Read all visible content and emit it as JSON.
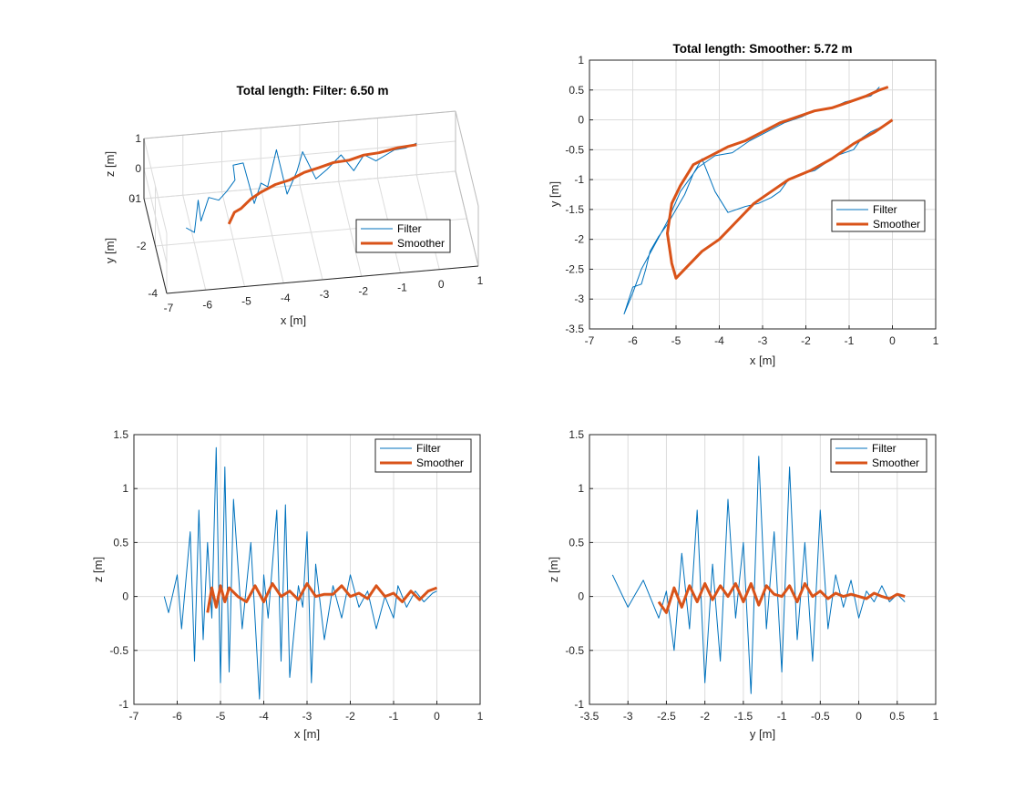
{
  "colors": {
    "filter": "#0072BD",
    "smoother": "#D95319",
    "grid": "#dcdcdc",
    "axes": "#262626"
  },
  "chart_data": [
    {
      "id": "3d",
      "type": "line",
      "title": "Total length: Filter: 6.50 m",
      "xlabel": "x [m]",
      "ylabel": "y [m]",
      "zlabel": "z [m]",
      "xlim": [
        -7,
        1
      ],
      "ylim": [
        -4,
        0
      ],
      "zlim": [
        -1,
        1
      ],
      "xticks": [
        "-7",
        "-6",
        "-5",
        "-4",
        "-3",
        "-2",
        "-1",
        "0",
        "1"
      ],
      "yticks": [
        "-4",
        "-2",
        "0"
      ],
      "zticks": [
        "-1",
        "0",
        "1"
      ],
      "grid": true,
      "legend": {
        "position": "right",
        "entries": [
          "Filter",
          "Smoother"
        ]
      },
      "series": [
        {
          "name": "Filter",
          "points": [
            [
              -6.3,
              -2.6,
              0
            ],
            [
              -6.1,
              -2.7,
              -0.1
            ],
            [
              -5.9,
              -2.0,
              0.4
            ],
            [
              -5.9,
              -2.5,
              0.1
            ],
            [
              -5.6,
              -1.8,
              0.3
            ],
            [
              -5.4,
              -2.2,
              0.5
            ],
            [
              -5.1,
              -1.5,
              0.2
            ],
            [
              -5.0,
              -2.3,
              1.2
            ],
            [
              -4.9,
              -1.3,
              0.9
            ],
            [
              -4.6,
              -1.0,
              0.7
            ],
            [
              -4.4,
              -1.6,
              -0.2
            ],
            [
              -4.2,
              -1.4,
              0.3
            ],
            [
              -4.0,
              -1.2,
              0.0
            ],
            [
              -3.7,
              -0.7,
              0.8
            ],
            [
              -3.5,
              -1.2,
              -0.3
            ],
            [
              -3.2,
              -0.9,
              0.2
            ],
            [
              -3.0,
              -0.5,
              0.5
            ],
            [
              -2.7,
              -0.8,
              -0.2
            ],
            [
              -2.4,
              -0.7,
              0.0
            ],
            [
              -2.0,
              -0.4,
              0.2
            ],
            [
              -1.7,
              -0.6,
              -0.2
            ],
            [
              -1.4,
              -0.35,
              0.1
            ],
            [
              -1.1,
              -0.4,
              -0.1
            ],
            [
              -0.6,
              -0.2,
              0.05
            ],
            [
              -0.3,
              -0.1,
              0.0
            ],
            [
              0,
              0,
              0.05
            ]
          ]
        },
        {
          "name": "Smoother",
          "points": [
            [
              -5.2,
              -2.6,
              0
            ],
            [
              -5.0,
              -2.2,
              0.05
            ],
            [
              -4.8,
              -2.0,
              0
            ],
            [
              -4.5,
              -1.7,
              0.05
            ],
            [
              -4.2,
              -1.4,
              0
            ],
            [
              -3.8,
              -1.2,
              0.05
            ],
            [
              -3.4,
              -1.0,
              0
            ],
            [
              -3.0,
              -0.8,
              0.05
            ],
            [
              -2.6,
              -0.6,
              0
            ],
            [
              -2.2,
              -0.5,
              0.05
            ],
            [
              -1.8,
              -0.4,
              0
            ],
            [
              -1.4,
              -0.3,
              0.05
            ],
            [
              -1.0,
              -0.2,
              0
            ],
            [
              -0.5,
              -0.1,
              0.03
            ],
            [
              0,
              0,
              0
            ]
          ]
        }
      ]
    },
    {
      "id": "xy",
      "type": "line",
      "title": "Total length: Smoother: 5.72 m",
      "xlabel": "x [m]",
      "ylabel": "y [m]",
      "xlim": [
        -7,
        1
      ],
      "ylim": [
        -3.5,
        1
      ],
      "xticks": [
        "-7",
        "-6",
        "-5",
        "-4",
        "-3",
        "-2",
        "-1",
        "0",
        "1"
      ],
      "yticks": [
        "-3.5",
        "-3",
        "-2.5",
        "-2",
        "-1.5",
        "-1",
        "-0.5",
        "0",
        "0.5",
        "1"
      ],
      "grid": true,
      "legend": {
        "position": "right",
        "entries": [
          "Filter",
          "Smoother"
        ]
      },
      "series": [
        {
          "name": "Filter",
          "x": [
            0,
            -0.2,
            -0.5,
            -0.7,
            -0.9,
            -1.3,
            -1.5,
            -1.8,
            -2.1,
            -2.4,
            -2.6,
            -2.8,
            -3.1,
            -3.4,
            -3.8,
            -4.1,
            -4.4,
            -4.6,
            -4.8,
            -5.0,
            -5.2,
            -5.4,
            -5.6,
            -5.7,
            -5.8,
            -6.0,
            -6.2,
            -6.0,
            -5.8,
            -5.5,
            -5.2,
            -4.9,
            -4.5,
            -4.1,
            -3.7,
            -3.3,
            -2.9,
            -2.5,
            -2.1,
            -1.8,
            -1.4,
            -1.1,
            -0.8,
            -0.5,
            -0.3
          ],
          "y": [
            0,
            -0.1,
            -0.2,
            -0.3,
            -0.5,
            -0.6,
            -0.7,
            -0.85,
            -0.9,
            -1.0,
            -1.2,
            -1.3,
            -1.4,
            -1.45,
            -1.55,
            -1.2,
            -0.65,
            -0.9,
            -1.25,
            -1.5,
            -1.75,
            -1.95,
            -2.2,
            -2.5,
            -2.75,
            -2.8,
            -3.25,
            -2.9,
            -2.5,
            -2.1,
            -1.7,
            -1.2,
            -0.8,
            -0.6,
            -0.55,
            -0.35,
            -0.2,
            -0.05,
            0.05,
            0.15,
            0.2,
            0.3,
            0.35,
            0.4,
            0.55
          ]
        },
        {
          "name": "Smoother",
          "x": [
            0,
            -0.4,
            -0.9,
            -1.4,
            -1.9,
            -2.4,
            -2.8,
            -3.2,
            -3.6,
            -4.0,
            -4.4,
            -4.8,
            -5.0,
            -5.1,
            -5.2,
            -5.1,
            -4.9,
            -4.6,
            -4.2,
            -3.8,
            -3.4,
            -3.0,
            -2.6,
            -2.2,
            -1.8,
            -1.4,
            -1.0,
            -0.6,
            -0.3,
            -0.1
          ],
          "y": [
            0,
            -0.2,
            -0.4,
            -0.65,
            -0.85,
            -1.0,
            -1.2,
            -1.4,
            -1.7,
            -2.0,
            -2.2,
            -2.5,
            -2.65,
            -2.4,
            -1.9,
            -1.4,
            -1.1,
            -0.75,
            -0.6,
            -0.45,
            -0.35,
            -0.2,
            -0.05,
            0.05,
            0.15,
            0.2,
            0.3,
            0.4,
            0.5,
            0.55
          ]
        }
      ]
    },
    {
      "id": "xz",
      "type": "line",
      "title": "",
      "xlabel": "x [m]",
      "ylabel": "z [m]",
      "xlim": [
        -7,
        1
      ],
      "ylim": [
        -1,
        1.5
      ],
      "xticks": [
        "-7",
        "-6",
        "-5",
        "-4",
        "-3",
        "-2",
        "-1",
        "0",
        "1"
      ],
      "yticks": [
        "-1",
        "-0.5",
        "0",
        "0.5",
        "1",
        "1.5"
      ],
      "grid": true,
      "legend": {
        "position": "top-right",
        "entries": [
          "Filter",
          "Smoother"
        ]
      },
      "series": [
        {
          "name": "Filter",
          "x": [
            -6.3,
            -6.2,
            -6.0,
            -5.9,
            -5.7,
            -5.6,
            -5.5,
            -5.4,
            -5.3,
            -5.2,
            -5.1,
            -5.0,
            -4.9,
            -4.8,
            -4.7,
            -4.5,
            -4.3,
            -4.1,
            -4.0,
            -3.9,
            -3.7,
            -3.6,
            -3.5,
            -3.4,
            -3.2,
            -3.1,
            -3.0,
            -2.9,
            -2.8,
            -2.6,
            -2.4,
            -2.2,
            -2.0,
            -1.8,
            -1.6,
            -1.4,
            -1.2,
            -1.0,
            -0.9,
            -0.7,
            -0.5,
            -0.3,
            -0.1,
            0
          ],
          "y": [
            0,
            -0.15,
            0.2,
            -0.3,
            0.6,
            -0.6,
            0.8,
            -0.4,
            0.5,
            -0.2,
            1.38,
            -0.8,
            1.2,
            -0.7,
            0.9,
            -0.3,
            0.5,
            -0.95,
            0.2,
            -0.2,
            0.8,
            -0.6,
            0.85,
            -0.75,
            0.1,
            -0.1,
            0.6,
            -0.8,
            0.3,
            -0.4,
            0.1,
            -0.2,
            0.2,
            -0.1,
            0.05,
            -0.3,
            0.0,
            -0.2,
            0.1,
            -0.1,
            0.05,
            -0.05,
            0.03,
            0.05
          ]
        },
        {
          "name": "Smoother",
          "x": [
            -5.3,
            -5.2,
            -5.1,
            -5.0,
            -4.9,
            -4.8,
            -4.6,
            -4.4,
            -4.2,
            -4.0,
            -3.8,
            -3.6,
            -3.4,
            -3.2,
            -3.0,
            -2.8,
            -2.6,
            -2.4,
            -2.2,
            -2.0,
            -1.8,
            -1.6,
            -1.4,
            -1.2,
            -1.0,
            -0.8,
            -0.6,
            -0.4,
            -0.2,
            0
          ],
          "y": [
            -0.15,
            0.08,
            -0.1,
            0.1,
            -0.05,
            0.08,
            0.0,
            -0.05,
            0.1,
            -0.05,
            0.12,
            0.0,
            0.05,
            -0.03,
            0.12,
            0.0,
            0.02,
            0.02,
            0.1,
            0.0,
            0.03,
            -0.02,
            0.1,
            0.0,
            0.03,
            -0.05,
            0.05,
            -0.03,
            0.05,
            0.08
          ]
        }
      ]
    },
    {
      "id": "yz",
      "type": "line",
      "title": "",
      "xlabel": "y [m]",
      "ylabel": "z [m]",
      "xlim": [
        -3.5,
        1
      ],
      "ylim": [
        -1,
        1.5
      ],
      "xticks": [
        "-3.5",
        "-3",
        "-2.5",
        "-2",
        "-1.5",
        "-1",
        "-0.5",
        "0",
        "0.5",
        "1"
      ],
      "yticks": [
        "-1",
        "-0.5",
        "0",
        "0.5",
        "1",
        "1.5"
      ],
      "grid": true,
      "legend": {
        "position": "top-right",
        "entries": [
          "Filter",
          "Smoother"
        ]
      },
      "series": [
        {
          "name": "Filter",
          "x": [
            -3.2,
            -3.0,
            -2.8,
            -2.6,
            -2.5,
            -2.4,
            -2.3,
            -2.2,
            -2.1,
            -2.0,
            -1.9,
            -1.8,
            -1.7,
            -1.6,
            -1.5,
            -1.4,
            -1.3,
            -1.2,
            -1.1,
            -1.0,
            -0.9,
            -0.8,
            -0.7,
            -0.6,
            -0.5,
            -0.4,
            -0.3,
            -0.2,
            -0.1,
            0,
            0.1,
            0.2,
            0.3,
            0.4,
            0.5,
            0.6
          ],
          "y": [
            0.2,
            -0.1,
            0.15,
            -0.2,
            0.05,
            -0.5,
            0.4,
            -0.3,
            0.8,
            -0.8,
            0.3,
            -0.6,
            0.9,
            -0.2,
            0.5,
            -0.9,
            1.3,
            -0.3,
            0.6,
            -0.7,
            1.2,
            -0.4,
            0.5,
            -0.6,
            0.8,
            -0.3,
            0.2,
            -0.1,
            0.15,
            -0.2,
            0.05,
            -0.05,
            0.1,
            -0.05,
            0.02,
            -0.05
          ]
        },
        {
          "name": "Smoother",
          "x": [
            -2.6,
            -2.5,
            -2.4,
            -2.3,
            -2.2,
            -2.1,
            -2.0,
            -1.9,
            -1.8,
            -1.7,
            -1.6,
            -1.5,
            -1.4,
            -1.3,
            -1.2,
            -1.1,
            -1.0,
            -0.9,
            -0.8,
            -0.7,
            -0.6,
            -0.5,
            -0.4,
            -0.3,
            -0.2,
            -0.1,
            0,
            0.1,
            0.2,
            0.3,
            0.4,
            0.5,
            0.6
          ],
          "y": [
            -0.05,
            -0.15,
            0.08,
            -0.1,
            0.1,
            -0.05,
            0.12,
            -0.03,
            0.1,
            0.0,
            0.12,
            -0.05,
            0.12,
            -0.08,
            0.1,
            0.02,
            0.0,
            0.1,
            -0.05,
            0.12,
            0.0,
            0.05,
            -0.02,
            0.03,
            0.0,
            0.02,
            0.0,
            -0.02,
            0.03,
            0.0,
            -0.02,
            0.02,
            0.0
          ]
        }
      ]
    }
  ]
}
